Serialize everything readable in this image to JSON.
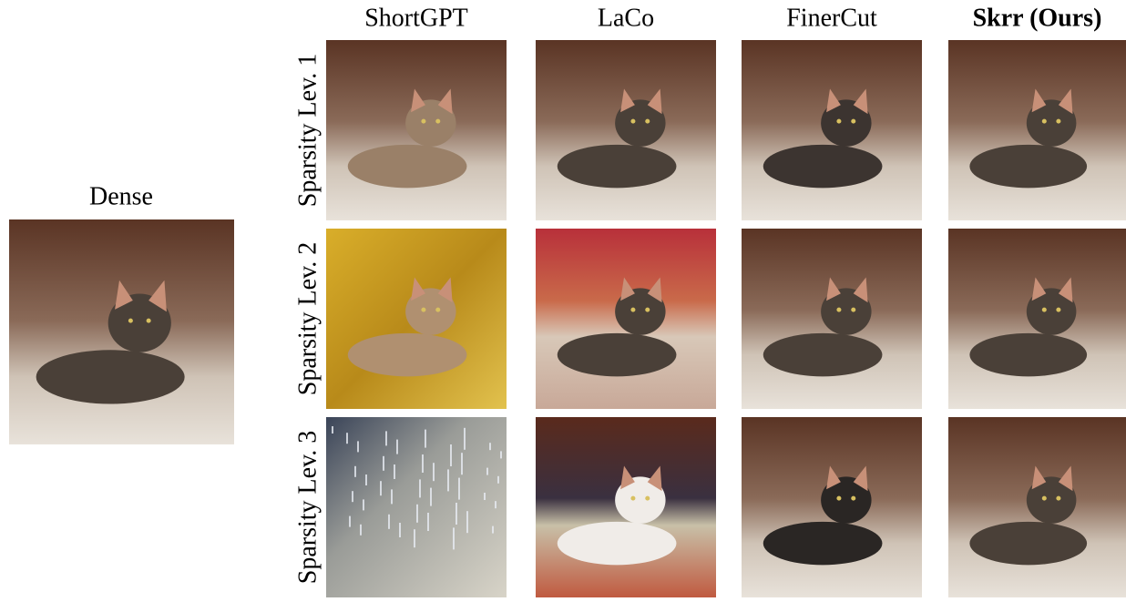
{
  "figure": {
    "dense_label": "Dense",
    "columns": [
      "ShortGPT",
      "LaCo",
      "FinerCut",
      "Skrr (Ours)"
    ],
    "rows": [
      "Sparsity Lev. 1",
      "Sparsity Lev. 2",
      "Sparsity Lev. 3"
    ]
  }
}
